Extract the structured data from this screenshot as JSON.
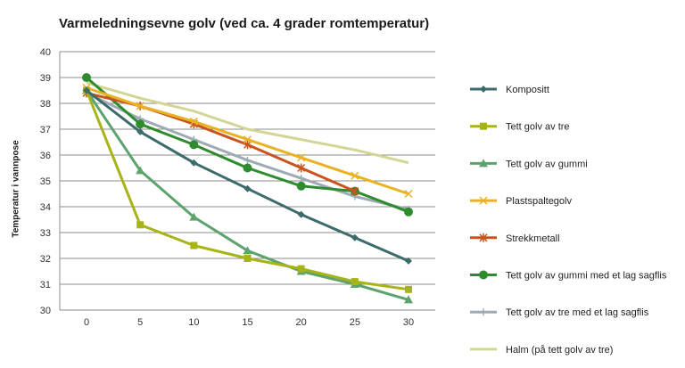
{
  "chart_data": {
    "type": "line",
    "title": "Varmeledningsevne golv (ved ca. 4 grader romtemperatur)",
    "xlabel": "",
    "ylabel": "Temperatur i vannpose",
    "x": [
      0,
      5,
      10,
      15,
      20,
      25,
      30
    ],
    "xlim": [
      0,
      30
    ],
    "ylim": [
      30,
      40
    ],
    "yticks": [
      30,
      31,
      32,
      33,
      34,
      35,
      36,
      37,
      38,
      39,
      40
    ],
    "grid": true,
    "legend_position": "right",
    "series": [
      {
        "name": "Kompositt",
        "color": "#3d6b6b",
        "marker": "diamond",
        "values": [
          38.5,
          36.9,
          35.7,
          34.7,
          33.7,
          32.8,
          31.9
        ]
      },
      {
        "name": "Tett golv av tre",
        "color": "#a7b317",
        "marker": "square",
        "values": [
          38.5,
          33.3,
          32.5,
          32.0,
          31.6,
          31.1,
          30.8
        ]
      },
      {
        "name": "Tett golv av gummi",
        "color": "#5da36e",
        "marker": "triangle",
        "values": [
          38.5,
          35.4,
          33.6,
          32.3,
          31.5,
          31.0,
          30.4
        ]
      },
      {
        "name": "Plastspaltegolv",
        "color": "#e8b222",
        "marker": "x",
        "values": [
          38.6,
          37.9,
          37.3,
          36.6,
          35.9,
          35.2,
          34.5
        ]
      },
      {
        "name": "Strekkmetall",
        "color": "#c9541e",
        "marker": "star",
        "values": [
          38.4,
          37.9,
          37.2,
          36.4,
          35.5,
          34.6,
          null
        ]
      },
      {
        "name": "Tett golv av gummi med et lag sagflis",
        "color": "#2e8c2e",
        "marker": "circle",
        "values": [
          39.0,
          37.2,
          36.4,
          35.5,
          34.8,
          34.6,
          33.8
        ]
      },
      {
        "name": "Tett golv av tre med et lag sagflis",
        "color": "#9eabb5",
        "marker": "plus",
        "values": [
          38.4,
          37.4,
          36.6,
          35.8,
          35.1,
          34.4,
          33.9
        ]
      },
      {
        "name": "Halm (på tett golv av tre)",
        "color": "#d2d695",
        "marker": "none",
        "values": [
          38.8,
          38.2,
          37.7,
          37.0,
          36.6,
          36.2,
          35.7
        ]
      }
    ]
  }
}
